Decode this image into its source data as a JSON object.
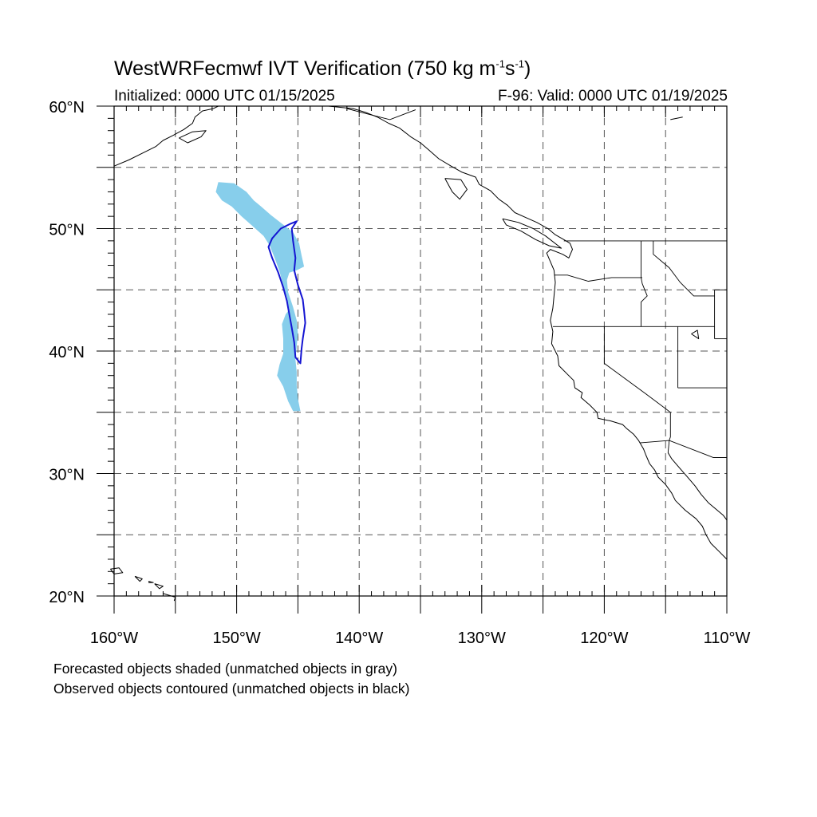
{
  "title": {
    "main": "WestWRFecmwf IVT Verification (750 kg m",
    "sup1": "-1",
    "mid": "s",
    "sup2": "-1",
    "end": ")"
  },
  "subtitle_left": "Initialized: 0000 UTC 01/15/2025",
  "subtitle_right": "F-96: Valid: 0000 UTC 01/19/2025",
  "notes": {
    "line1": "Forecasted objects shaded (unmatched objects in gray)",
    "line2": "Observed objects contoured (unmatched objects in black)"
  },
  "map": {
    "lon_range": [
      -160,
      -110
    ],
    "lat_range": [
      20,
      60
    ],
    "lon_ticks": [
      {
        "value": -160,
        "label": "160°W"
      },
      {
        "value": -150,
        "label": "150°W"
      },
      {
        "value": -140,
        "label": "140°W"
      },
      {
        "value": -130,
        "label": "130°W"
      },
      {
        "value": -120,
        "label": "120°W"
      },
      {
        "value": -110,
        "label": "110°W"
      }
    ],
    "lat_ticks": [
      {
        "value": 60,
        "label": "60°N"
      },
      {
        "value": 50,
        "label": "50°N"
      },
      {
        "value": 40,
        "label": "40°N"
      },
      {
        "value": 30,
        "label": "30°N"
      },
      {
        "value": 20,
        "label": "20°N"
      }
    ],
    "grid_lons": [
      -155,
      -150,
      -145,
      -140,
      -135,
      -130,
      -125,
      -120,
      -115
    ],
    "grid_lats": [
      25,
      30,
      35,
      40,
      45,
      50,
      55
    ],
    "colors": {
      "forecast_fill": "#87ceeb",
      "observed_contour": "#1414d2",
      "coastline": "#000000"
    },
    "forecast_object": [
      [
        -151.5,
        53.8
      ],
      [
        -150.2,
        53.7
      ],
      [
        -149.2,
        53.0
      ],
      [
        -148.6,
        52.3
      ],
      [
        -148.0,
        51.8
      ],
      [
        -147.2,
        51.1
      ],
      [
        -146.3,
        50.4
      ],
      [
        -145.4,
        49.7
      ],
      [
        -144.9,
        48.8
      ],
      [
        -144.7,
        47.8
      ],
      [
        -144.5,
        46.9
      ],
      [
        -145.1,
        46.6
      ],
      [
        -145.7,
        46.4
      ],
      [
        -145.9,
        45.8
      ],
      [
        -145.8,
        44.8
      ],
      [
        -145.4,
        43.6
      ],
      [
        -145.1,
        42.5
      ],
      [
        -145.0,
        41.4
      ],
      [
        -145.1,
        40.4
      ],
      [
        -145.2,
        39.3
      ],
      [
        -145.1,
        38.3
      ],
      [
        -145.1,
        37.2
      ],
      [
        -145.0,
        36.1
      ],
      [
        -144.8,
        35.1
      ],
      [
        -145.4,
        35.1
      ],
      [
        -145.8,
        35.9
      ],
      [
        -146.2,
        37.1
      ],
      [
        -146.7,
        38.0
      ],
      [
        -146.5,
        38.9
      ],
      [
        -146.2,
        39.8
      ],
      [
        -146.2,
        41.0
      ],
      [
        -146.3,
        42.2
      ],
      [
        -146.0,
        43.0
      ],
      [
        -145.7,
        43.4
      ],
      [
        -145.9,
        44.4
      ],
      [
        -146.2,
        45.3
      ],
      [
        -146.5,
        46.5
      ],
      [
        -146.9,
        47.6
      ],
      [
        -147.3,
        48.6
      ],
      [
        -147.8,
        49.4
      ],
      [
        -148.7,
        50.2
      ],
      [
        -149.6,
        51.0
      ],
      [
        -150.4,
        51.8
      ],
      [
        -151.2,
        52.3
      ],
      [
        -151.7,
        53.0
      ]
    ],
    "observed_object": [
      [
        -145.1,
        50.6
      ],
      [
        -145.5,
        50.0
      ],
      [
        -145.4,
        49.0
      ],
      [
        -145.2,
        47.6
      ],
      [
        -145.3,
        46.6
      ],
      [
        -145.0,
        45.4
      ],
      [
        -144.6,
        44.2
      ],
      [
        -144.5,
        43.3
      ],
      [
        -144.4,
        42.3
      ],
      [
        -144.6,
        41.0
      ],
      [
        -144.7,
        40.2
      ],
      [
        -144.8,
        39.0
      ],
      [
        -145.2,
        39.5
      ],
      [
        -145.3,
        40.7
      ],
      [
        -145.5,
        41.9
      ],
      [
        -145.7,
        43.0
      ],
      [
        -145.9,
        44.1
      ],
      [
        -146.2,
        45.2
      ],
      [
        -146.6,
        46.4
      ],
      [
        -147.1,
        47.6
      ],
      [
        -147.4,
        48.5
      ],
      [
        -147.1,
        49.2
      ],
      [
        -146.4,
        50.0
      ],
      [
        -145.6,
        50.4
      ]
    ],
    "coastline": [
      [
        -145.0,
        60.0
      ],
      [
        -142.5,
        60.0
      ],
      [
        -140.5,
        59.8
      ],
      [
        -139.5,
        59.5
      ],
      [
        -138.5,
        59.1
      ],
      [
        -137.6,
        58.6
      ],
      [
        -136.7,
        58.2
      ],
      [
        -135.8,
        57.5
      ],
      [
        -135.0,
        57.0
      ],
      [
        -134.3,
        56.4
      ],
      [
        -133.5,
        55.7
      ],
      [
        -132.5,
        55.1
      ],
      [
        -131.6,
        54.6
      ],
      [
        -130.5,
        54.2
      ],
      [
        -130.2,
        53.6
      ],
      [
        -129.3,
        53.1
      ],
      [
        -128.6,
        52.4
      ],
      [
        -127.9,
        51.9
      ],
      [
        -127.3,
        51.3
      ],
      [
        -126.4,
        50.9
      ],
      [
        -125.5,
        50.5
      ],
      [
        -124.6,
        50.0
      ],
      [
        -124.0,
        49.5
      ],
      [
        -123.3,
        49.1
      ],
      [
        -122.8,
        48.8
      ],
      [
        -122.6,
        48.3
      ],
      [
        -122.9,
        47.6
      ],
      [
        -123.4,
        47.9
      ],
      [
        -124.4,
        48.3
      ],
      [
        -124.7,
        48.0
      ],
      [
        -124.4,
        47.3
      ],
      [
        -124.1,
        46.6
      ],
      [
        -124.0,
        45.6
      ],
      [
        -124.1,
        44.5
      ],
      [
        -124.2,
        43.5
      ],
      [
        -124.4,
        42.5
      ],
      [
        -124.2,
        41.6
      ],
      [
        -124.3,
        40.6
      ],
      [
        -123.8,
        39.6
      ],
      [
        -123.7,
        38.8
      ],
      [
        -123.0,
        38.1
      ],
      [
        -122.5,
        37.6
      ],
      [
        -122.4,
        37.0
      ],
      [
        -121.8,
        36.6
      ],
      [
        -121.9,
        36.2
      ],
      [
        -121.2,
        35.6
      ],
      [
        -120.6,
        35.0
      ],
      [
        -120.5,
        34.5
      ],
      [
        -119.5,
        34.3
      ],
      [
        -118.5,
        34.0
      ],
      [
        -118.2,
        33.7
      ],
      [
        -117.6,
        33.2
      ],
      [
        -117.2,
        32.7
      ],
      [
        -116.8,
        32.0
      ],
      [
        -116.6,
        31.5
      ],
      [
        -116.3,
        30.8
      ],
      [
        -115.9,
        30.3
      ],
      [
        -115.6,
        29.7
      ],
      [
        -115.0,
        29.1
      ],
      [
        -114.5,
        28.4
      ],
      [
        -114.2,
        27.8
      ],
      [
        -113.4,
        27.0
      ],
      [
        -112.5,
        26.3
      ],
      [
        -112.0,
        25.7
      ],
      [
        -111.7,
        25.0
      ],
      [
        -111.3,
        24.3
      ],
      [
        -110.6,
        23.6
      ],
      [
        -110.0,
        23.0
      ]
    ],
    "gulf_coast": [
      [
        -114.8,
        31.7
      ],
      [
        -114.5,
        31.2
      ],
      [
        -113.9,
        30.5
      ],
      [
        -113.2,
        29.7
      ],
      [
        -112.6,
        29.0
      ],
      [
        -112.1,
        28.3
      ],
      [
        -111.5,
        27.6
      ],
      [
        -110.9,
        27.1
      ],
      [
        -110.3,
        26.6
      ],
      [
        -110.0,
        26.2
      ]
    ],
    "alaska_west": [
      [
        -160.0,
        55.1
      ],
      [
        -158.8,
        55.6
      ],
      [
        -157.6,
        56.2
      ],
      [
        -156.6,
        56.7
      ],
      [
        -156.0,
        57.2
      ],
      [
        -155.2,
        57.6
      ],
      [
        -154.3,
        58.1
      ],
      [
        -153.6,
        58.6
      ],
      [
        -153.4,
        59.1
      ],
      [
        -152.8,
        59.6
      ],
      [
        -151.9,
        59.8
      ],
      [
        -151.5,
        60.0
      ]
    ],
    "kodiak": [
      [
        -154.7,
        57.4
      ],
      [
        -153.6,
        57.9
      ],
      [
        -152.5,
        58.0
      ],
      [
        -152.9,
        57.5
      ],
      [
        -154.0,
        57.0
      ],
      [
        -154.7,
        57.4
      ]
    ],
    "vancouver_island": [
      [
        -128.3,
        50.8
      ],
      [
        -127.0,
        50.5
      ],
      [
        -125.8,
        50.0
      ],
      [
        -124.8,
        49.4
      ],
      [
        -123.5,
        48.4
      ],
      [
        -124.5,
        48.6
      ],
      [
        -125.6,
        49.1
      ],
      [
        -126.8,
        49.8
      ],
      [
        -128.0,
        50.3
      ],
      [
        -128.3,
        50.8
      ]
    ],
    "haida_gwaii": [
      [
        -133.0,
        54.1
      ],
      [
        -131.7,
        54.0
      ],
      [
        -131.2,
        53.2
      ],
      [
        -131.8,
        52.4
      ],
      [
        -132.4,
        53.0
      ],
      [
        -133.0,
        54.1
      ]
    ],
    "hawaii": [
      [
        [
          -160.3,
          22.2
        ],
        [
          -159.6,
          22.3
        ],
        [
          -159.3,
          21.9
        ],
        [
          -160.0,
          21.8
        ],
        [
          -160.3,
          22.2
        ]
      ],
      [
        [
          -158.3,
          21.6
        ],
        [
          -157.7,
          21.4
        ],
        [
          -157.9,
          21.2
        ],
        [
          -158.3,
          21.6
        ]
      ],
      [
        [
          -157.2,
          21.2
        ],
        [
          -156.8,
          21.1
        ],
        [
          -157.2,
          21.1
        ]
      ],
      [
        [
          -156.7,
          21.0
        ],
        [
          -156.0,
          20.8
        ],
        [
          -156.3,
          20.6
        ],
        [
          -156.7,
          21.0
        ]
      ],
      [
        [
          -156.0,
          20.2
        ],
        [
          -155.0,
          19.9
        ],
        [
          -155.1,
          19.6
        ]
      ]
    ],
    "borders": [
      [
        [
          -141.0,
          60.0
        ],
        [
          -141.0,
          59.8
        ],
        [
          -139.1,
          59.3
        ],
        [
          -137.5,
          58.9
        ],
        [
          -135.4,
          59.7
        ]
      ],
      [
        [
          -123.3,
          49.0
        ],
        [
          -110.0,
          49.0
        ]
      ],
      [
        [
          -124.2,
          42.0
        ],
        [
          -111.0,
          42.0
        ]
      ],
      [
        [
          -117.0,
          49.0
        ],
        [
          -117.0,
          46.0
        ],
        [
          -116.9,
          45.5
        ],
        [
          -116.5,
          44.5
        ],
        [
          -117.0,
          44.0
        ],
        [
          -117.0,
          42.0
        ]
      ],
      [
        [
          -116.0,
          49.0
        ],
        [
          -116.0,
          47.9
        ],
        [
          -114.7,
          46.8
        ],
        [
          -113.8,
          45.6
        ],
        [
          -112.7,
          44.5
        ],
        [
          -111.0,
          44.5
        ]
      ],
      [
        [
          -111.0,
          45.0
        ],
        [
          -110.0,
          45.0
        ]
      ],
      [
        [
          -111.0,
          45.0
        ],
        [
          -111.0,
          41.0
        ]
      ],
      [
        [
          -111.0,
          41.0
        ],
        [
          -110.0,
          41.0
        ]
      ],
      [
        [
          -120.0,
          42.0
        ],
        [
          -120.0,
          39.0
        ],
        [
          -116.6,
          36.5
        ],
        [
          -114.6,
          35.0
        ]
      ],
      [
        [
          -114.0,
          42.0
        ],
        [
          -114.0,
          37.0
        ]
      ],
      [
        [
          -114.0,
          37.0
        ],
        [
          -110.0,
          37.0
        ]
      ],
      [
        [
          -124.1,
          46.2
        ],
        [
          -123.0,
          46.2
        ],
        [
          -121.3,
          45.7
        ],
        [
          -119.4,
          46.0
        ],
        [
          -116.9,
          46.0
        ]
      ],
      [
        [
          -117.1,
          32.5
        ],
        [
          -114.7,
          32.7
        ],
        [
          -111.1,
          31.3
        ],
        [
          -110.0,
          31.3
        ]
      ],
      [
        [
          -114.6,
          35.0
        ],
        [
          -114.6,
          33.0
        ],
        [
          -114.7,
          32.7
        ]
      ],
      [
        [
          -114.7,
          32.7
        ],
        [
          -114.8,
          31.7
        ]
      ]
    ],
    "lakes": [
      [
        [
          -112.9,
          41.4
        ],
        [
          -112.3,
          41.0
        ],
        [
          -112.4,
          41.7
        ],
        [
          -112.9,
          41.4
        ]
      ],
      [
        [
          -114.6,
          58.9
        ],
        [
          -113.6,
          59.1
        ]
      ]
    ]
  }
}
